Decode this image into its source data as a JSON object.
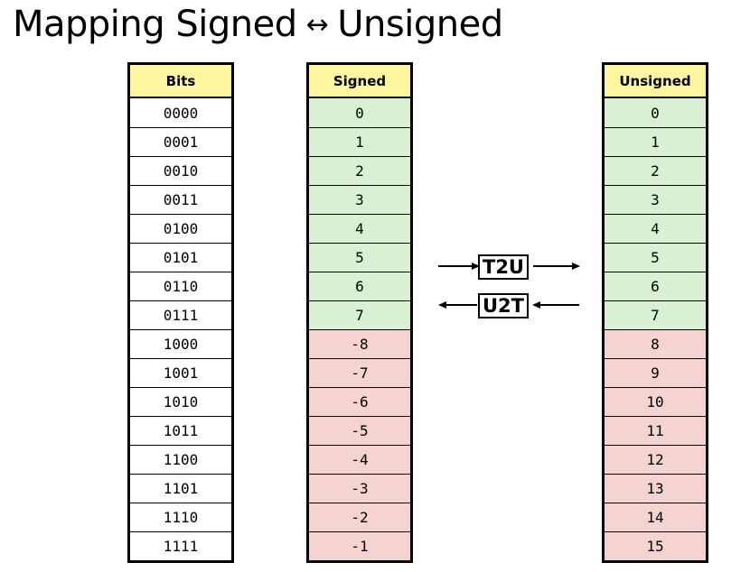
{
  "title": {
    "left": "Mapping Signed",
    "arrow": "↔",
    "right": "Unsigned"
  },
  "columns": {
    "bits": {
      "header": "Bits",
      "values": [
        "0000",
        "0001",
        "0010",
        "0011",
        "0100",
        "0101",
        "0110",
        "0111",
        "1000",
        "1001",
        "1010",
        "1011",
        "1100",
        "1101",
        "1110",
        "1111"
      ]
    },
    "signed": {
      "header": "Signed",
      "values": [
        "0",
        "1",
        "2",
        "3",
        "4",
        "5",
        "6",
        "7",
        "-8",
        "-7",
        "-6",
        "-5",
        "-4",
        "-3",
        "-2",
        "-1"
      ]
    },
    "unsigned": {
      "header": "Unsigned",
      "values": [
        "0",
        "1",
        "2",
        "3",
        "4",
        "5",
        "6",
        "7",
        "8",
        "9",
        "10",
        "11",
        "12",
        "13",
        "14",
        "15"
      ]
    }
  },
  "mappings": {
    "t2u": "T2U",
    "u2t": "U2T"
  },
  "colors": {
    "header_bg": "#fef5a0",
    "nonnegative_bg": "#d9f0d3",
    "negative_bg": "#f5d3d1",
    "bits_bg": "#ffffff"
  }
}
